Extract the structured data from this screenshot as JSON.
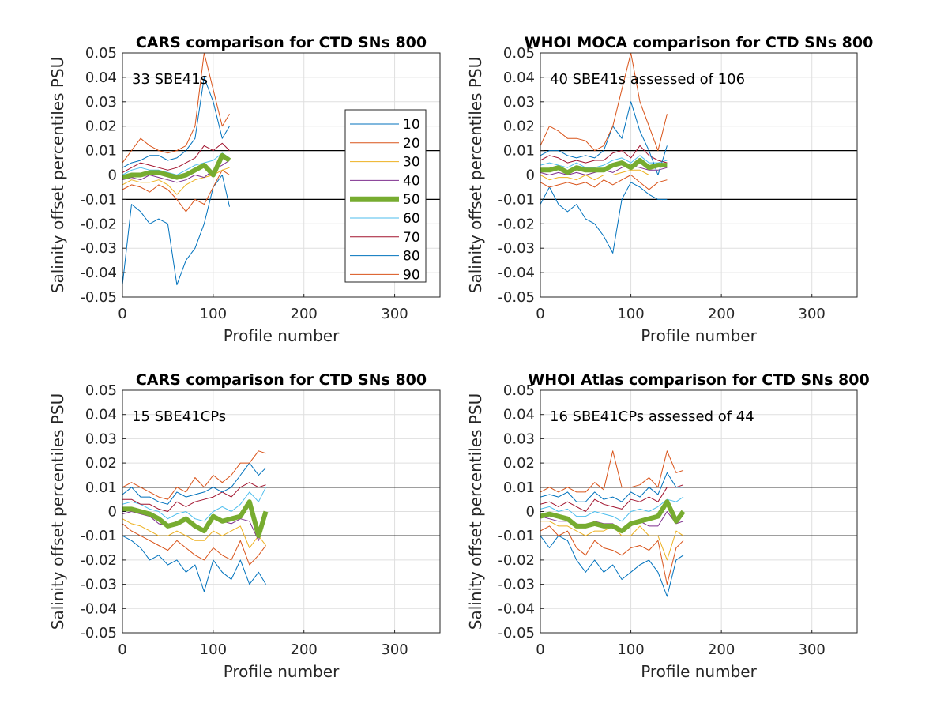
{
  "chart_data": [
    {
      "type": "line",
      "title": "CARS comparison for CTD SNs 800",
      "annotation": "33 SBE41s",
      "xlabel": "Profile number",
      "ylabel": "Salinity offset percentiles PSU",
      "xlim": [
        0,
        350
      ],
      "ylim": [
        -0.05,
        0.05
      ],
      "xticks": [
        "0",
        "100",
        "200",
        "300"
      ],
      "yticks": [
        "-0.05",
        "-0.04",
        "-0.03",
        "-0.02",
        "-0.01",
        "0",
        "0.01",
        "0.02",
        "0.03",
        "0.04",
        "0.05"
      ],
      "reference_lines": [
        -0.01,
        0.01
      ],
      "grid": true,
      "legend": {
        "placement": "right-center",
        "entries": [
          "10",
          "20",
          "30",
          "40",
          "50",
          "60",
          "70",
          "80",
          "90"
        ]
      },
      "x": [
        0,
        10,
        20,
        30,
        40,
        50,
        60,
        70,
        80,
        90,
        100,
        110,
        118
      ],
      "series": [
        {
          "name": "10",
          "values": [
            -0.045,
            -0.012,
            -0.015,
            -0.02,
            -0.018,
            -0.02,
            -0.045,
            -0.035,
            -0.03,
            -0.02,
            -0.005,
            0,
            -0.013
          ]
        },
        {
          "name": "20",
          "values": [
            -0.006,
            -0.004,
            -0.005,
            -0.007,
            -0.004,
            -0.006,
            -0.01,
            -0.015,
            -0.01,
            -0.012,
            -0.005,
            0.002,
            0
          ]
        },
        {
          "name": "30",
          "values": [
            -0.004,
            -0.002,
            -0.003,
            -0.003,
            -0.002,
            -0.004,
            -0.008,
            -0.004,
            -0.002,
            -0.001,
            0,
            0.002,
            0.003
          ]
        },
        {
          "name": "40",
          "values": [
            -0.002,
            -0.001,
            -0.002,
            0,
            -0.001,
            -0.002,
            -0.003,
            -0.002,
            0,
            -0.001,
            0.002,
            0.004,
            0.006
          ]
        },
        {
          "name": "50",
          "values": [
            -0.001,
            0,
            0,
            0.001,
            0.001,
            0,
            -0.001,
            0,
            0.002,
            0.004,
            0,
            0.008,
            0.006
          ]
        },
        {
          "name": "60",
          "values": [
            0,
            0.002,
            0.003,
            0.002,
            0.002,
            0.001,
            0,
            0.002,
            0.004,
            0.005,
            0.006,
            0.009,
            0.007
          ]
        },
        {
          "name": "70",
          "values": [
            0.001,
            0.003,
            0.005,
            0.004,
            0.003,
            0.002,
            0.003,
            0.005,
            0.007,
            0.012,
            0.01,
            0.013,
            0.01
          ]
        },
        {
          "name": "80",
          "values": [
            0.003,
            0.005,
            0.006,
            0.008,
            0.008,
            0.006,
            0.007,
            0.01,
            0.015,
            0.04,
            0.03,
            0.015,
            0.02
          ]
        },
        {
          "name": "90",
          "values": [
            0.005,
            0.01,
            0.015,
            0.012,
            0.01,
            0.009,
            0.01,
            0.012,
            0.02,
            0.05,
            0.035,
            0.02,
            0.025
          ]
        }
      ]
    },
    {
      "type": "line",
      "title": "WHOI MOCA comparison for CTD SNs 800",
      "annotation": "40 SBE41s assessed of 106",
      "xlabel": "Profile number",
      "ylabel": "Salinity offset percentiles PSU",
      "xlim": [
        0,
        350
      ],
      "ylim": [
        -0.05,
        0.05
      ],
      "xticks": [
        "0",
        "100",
        "200",
        "300"
      ],
      "yticks": [
        "-0.05",
        "-0.04",
        "-0.03",
        "-0.02",
        "-0.01",
        "0",
        "0.01",
        "0.02",
        "0.03",
        "0.04",
        "0.05"
      ],
      "reference_lines": [
        -0.01,
        0.01
      ],
      "grid": true,
      "x": [
        0,
        10,
        20,
        30,
        40,
        50,
        60,
        70,
        80,
        90,
        100,
        110,
        120,
        130,
        140
      ],
      "series": [
        {
          "name": "10",
          "values": [
            -0.012,
            -0.005,
            -0.012,
            -0.015,
            -0.012,
            -0.018,
            -0.02,
            -0.025,
            -0.032,
            -0.01,
            -0.003,
            -0.005,
            -0.008,
            -0.01,
            -0.01
          ]
        },
        {
          "name": "20",
          "values": [
            -0.003,
            -0.005,
            -0.004,
            -0.003,
            -0.004,
            -0.003,
            -0.005,
            -0.002,
            -0.004,
            -0.002,
            0,
            -0.003,
            -0.006,
            -0.003,
            -0.002
          ]
        },
        {
          "name": "30",
          "values": [
            0,
            -0.002,
            -0.001,
            -0.001,
            -0.002,
            0,
            -0.002,
            0,
            0,
            0.001,
            0.002,
            0.002,
            0,
            0,
            0
          ]
        },
        {
          "name": "40",
          "values": [
            0.001,
            0,
            0.001,
            0,
            0.001,
            0,
            0.001,
            0.002,
            0.001,
            0.003,
            0.004,
            0.003,
            0.002,
            0.002,
            0.003
          ]
        },
        {
          "name": "50",
          "values": [
            0.002,
            0.002,
            0.003,
            0.001,
            0.003,
            0.002,
            0.002,
            0.002,
            0.004,
            0.005,
            0.003,
            0.006,
            0.003,
            0.004,
            0.004
          ]
        },
        {
          "name": "60",
          "values": [
            0.004,
            0.005,
            0.004,
            0.003,
            0.005,
            0.003,
            0.003,
            0.004,
            0.006,
            0.007,
            0.005,
            0.008,
            0.005,
            0.005,
            0.006
          ]
        },
        {
          "name": "70",
          "values": [
            0.006,
            0.008,
            0.007,
            0.005,
            0.006,
            0.005,
            0.006,
            0.006,
            0.009,
            0.01,
            0.007,
            0.012,
            0.008,
            0.006,
            0.005
          ]
        },
        {
          "name": "80",
          "values": [
            0.008,
            0.01,
            0.01,
            0.008,
            0.007,
            0.008,
            0.007,
            0.01,
            0.02,
            0.015,
            0.03,
            0.018,
            0.01,
            0.0,
            0.012
          ]
        },
        {
          "name": "90",
          "values": [
            0.012,
            0.02,
            0.018,
            0.015,
            0.015,
            0.014,
            0.01,
            0.012,
            0.02,
            0.035,
            0.05,
            0.03,
            0.02,
            0.01,
            0.025
          ]
        }
      ]
    },
    {
      "type": "line",
      "title": "CARS comparison for CTD SNs 800",
      "annotation": "15 SBE41CPs",
      "xlabel": "Profile number",
      "ylabel": "Salinity offset percentiles PSU",
      "xlim": [
        0,
        350
      ],
      "ylim": [
        -0.05,
        0.05
      ],
      "xticks": [
        "0",
        "100",
        "200",
        "300"
      ],
      "yticks": [
        "-0.05",
        "-0.04",
        "-0.03",
        "-0.02",
        "-0.01",
        "0",
        "0.01",
        "0.02",
        "0.03",
        "0.04",
        "0.05"
      ],
      "reference_lines": [
        -0.01,
        0.01
      ],
      "grid": true,
      "x": [
        0,
        10,
        20,
        30,
        40,
        50,
        60,
        70,
        80,
        90,
        100,
        110,
        120,
        130,
        140,
        150,
        158
      ],
      "series": [
        {
          "name": "10",
          "values": [
            -0.01,
            -0.012,
            -0.015,
            -0.02,
            -0.018,
            -0.022,
            -0.02,
            -0.025,
            -0.022,
            -0.033,
            -0.02,
            -0.025,
            -0.028,
            -0.02,
            -0.03,
            -0.025,
            -0.03
          ]
        },
        {
          "name": "20",
          "values": [
            -0.005,
            -0.008,
            -0.01,
            -0.012,
            -0.014,
            -0.016,
            -0.012,
            -0.015,
            -0.018,
            -0.02,
            -0.015,
            -0.018,
            -0.02,
            -0.012,
            -0.022,
            -0.018,
            -0.014
          ]
        },
        {
          "name": "30",
          "values": [
            -0.003,
            -0.005,
            -0.006,
            -0.008,
            -0.01,
            -0.01,
            -0.008,
            -0.01,
            -0.012,
            -0.012,
            -0.008,
            -0.01,
            -0.008,
            -0.006,
            -0.015,
            -0.01,
            -0.014
          ]
        },
        {
          "name": "40",
          "values": [
            -0.001,
            0,
            -0.001,
            -0.002,
            -0.005,
            -0.006,
            -0.004,
            -0.004,
            -0.006,
            -0.008,
            -0.002,
            -0.004,
            -0.005,
            -0.003,
            -0.004,
            -0.012,
            -0.002
          ]
        },
        {
          "name": "50",
          "values": [
            0.001,
            0.001,
            0,
            -0.001,
            -0.003,
            -0.006,
            -0.005,
            -0.003,
            -0.006,
            -0.008,
            -0.002,
            -0.004,
            -0.003,
            -0.002,
            0.004,
            -0.01,
            0
          ]
        },
        {
          "name": "60",
          "values": [
            0.003,
            0.004,
            0.003,
            0.001,
            0,
            -0.003,
            -0.001,
            0,
            -0.003,
            -0.004,
            0,
            0.002,
            0,
            0.003,
            0.008,
            0.004,
            0.01
          ]
        },
        {
          "name": "70",
          "values": [
            0.005,
            0.005,
            0.003,
            0.003,
            0.001,
            0,
            0.004,
            0.002,
            0.004,
            0.005,
            0.006,
            0.008,
            0.006,
            0.01,
            0.012,
            0.01,
            0.011
          ]
        },
        {
          "name": "80",
          "values": [
            0.007,
            0.01,
            0.006,
            0.006,
            0.004,
            0.003,
            0.008,
            0.006,
            0.007,
            0.008,
            0.01,
            0.008,
            0.01,
            0.015,
            0.02,
            0.015,
            0.018
          ]
        },
        {
          "name": "90",
          "values": [
            0.01,
            0.012,
            0.01,
            0.008,
            0.006,
            0.005,
            0.01,
            0.008,
            0.014,
            0.01,
            0.015,
            0.012,
            0.015,
            0.02,
            0.02,
            0.025,
            0.024
          ]
        }
      ]
    },
    {
      "type": "line",
      "title": "WHOI Atlas comparison for CTD SNs 800",
      "annotation": "16 SBE41CPs assessed of 44",
      "xlabel": "Profile number",
      "ylabel": "Salinity offset percentiles PSU",
      "xlim": [
        0,
        350
      ],
      "ylim": [
        -0.05,
        0.05
      ],
      "xticks": [
        "0",
        "100",
        "200",
        "300"
      ],
      "yticks": [
        "-0.05",
        "-0.04",
        "-0.03",
        "-0.02",
        "-0.01",
        "0",
        "0.01",
        "0.02",
        "0.03",
        "0.04",
        "0.05"
      ],
      "reference_lines": [
        -0.01,
        0.01
      ],
      "grid": true,
      "x": [
        0,
        10,
        20,
        30,
        40,
        50,
        60,
        70,
        80,
        90,
        100,
        110,
        120,
        130,
        140,
        150,
        158
      ],
      "series": [
        {
          "name": "10",
          "values": [
            -0.01,
            -0.015,
            -0.01,
            -0.012,
            -0.02,
            -0.025,
            -0.02,
            -0.025,
            -0.022,
            -0.028,
            -0.025,
            -0.022,
            -0.02,
            -0.025,
            -0.035,
            -0.02,
            -0.018
          ]
        },
        {
          "name": "20",
          "values": [
            -0.008,
            -0.006,
            -0.01,
            -0.008,
            -0.015,
            -0.018,
            -0.012,
            -0.015,
            -0.016,
            -0.018,
            -0.015,
            -0.014,
            -0.016,
            -0.012,
            -0.03,
            -0.015,
            -0.012
          ]
        },
        {
          "name": "30",
          "values": [
            -0.004,
            -0.004,
            -0.006,
            -0.006,
            -0.008,
            -0.01,
            -0.008,
            -0.008,
            -0.006,
            -0.01,
            -0.01,
            -0.006,
            -0.01,
            -0.01,
            -0.02,
            -0.008,
            -0.01
          ]
        },
        {
          "name": "40",
          "values": [
            -0.002,
            -0.003,
            -0.004,
            -0.004,
            -0.005,
            -0.006,
            -0.004,
            -0.005,
            -0.005,
            -0.008,
            -0.006,
            -0.004,
            -0.006,
            -0.006,
            0,
            -0.005,
            -0.004
          ]
        },
        {
          "name": "50",
          "values": [
            -0.002,
            -0.001,
            -0.002,
            -0.003,
            -0.006,
            -0.006,
            -0.005,
            -0.006,
            -0.006,
            -0.008,
            -0.005,
            -0.004,
            -0.003,
            -0.002,
            0.004,
            -0.004,
            0
          ]
        },
        {
          "name": "60",
          "values": [
            0.001,
            0.002,
            0,
            0.001,
            -0.002,
            -0.002,
            0,
            -0.001,
            -0.002,
            -0.004,
            0,
            0.001,
            0,
            0.002,
            0.005,
            0.004,
            0.006
          ]
        },
        {
          "name": "70",
          "values": [
            0.003,
            0.004,
            0.002,
            0.004,
            0.002,
            0,
            0.005,
            0.003,
            0.002,
            0.001,
            0.005,
            0.004,
            0.006,
            0.004,
            0.01,
            0.01,
            0.011
          ]
        },
        {
          "name": "80",
          "values": [
            0.006,
            0.007,
            0.006,
            0.008,
            0.004,
            0.004,
            0.008,
            0.005,
            0.006,
            0.004,
            0.008,
            0.006,
            0.01,
            0.007,
            0.016,
            0.01,
            0.01
          ]
        },
        {
          "name": "90",
          "values": [
            0.008,
            0.01,
            0.008,
            0.01,
            0.008,
            0.008,
            0.012,
            0.009,
            0.025,
            0.01,
            0.01,
            0.011,
            0.014,
            0.01,
            0.025,
            0.016,
            0.017
          ]
        }
      ]
    }
  ],
  "series_colors": {
    "10": "#0072BD",
    "20": "#D95319",
    "30": "#EDB120",
    "40": "#7E2F8E",
    "50": "#77AC30",
    "60": "#4DBEEE",
    "70": "#A2142F",
    "80": "#0072BD",
    "90": "#D95319"
  }
}
